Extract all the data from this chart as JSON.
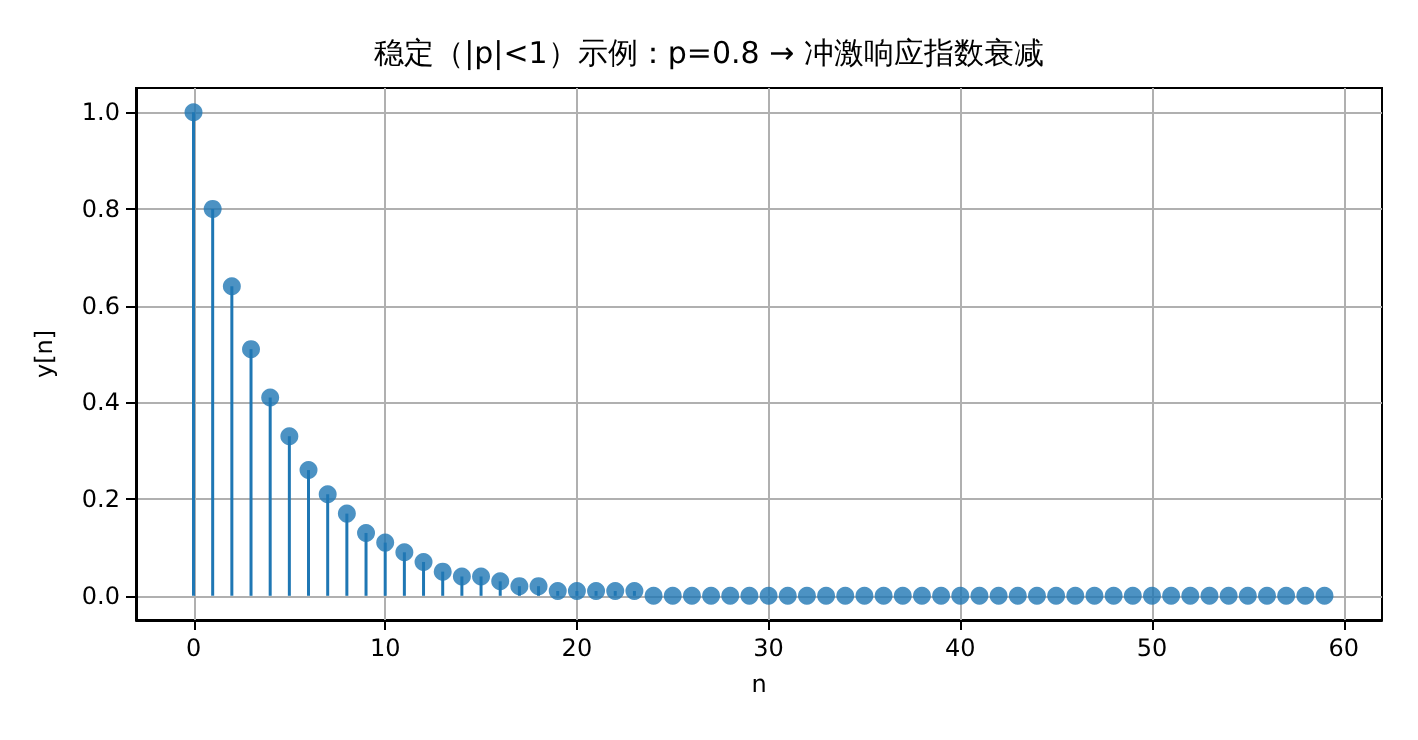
{
  "chart_data": {
    "type": "lollipop",
    "title": "稳定（|p|<1）示例：p=0.8 → 冲激响应指数衰减",
    "xlabel": "n",
    "ylabel": "y[n]",
    "x": [
      0,
      1,
      2,
      3,
      4,
      5,
      6,
      7,
      8,
      9,
      10,
      11,
      12,
      13,
      14,
      15,
      16,
      17,
      18,
      19,
      20,
      21,
      22,
      23,
      24,
      25,
      26,
      27,
      28,
      29,
      30,
      31,
      32,
      33,
      34,
      35,
      36,
      37,
      38,
      39,
      40,
      41,
      42,
      43,
      44,
      45,
      46,
      47,
      48,
      49,
      50,
      51,
      52,
      53,
      54,
      55,
      56,
      57,
      58,
      59
    ],
    "series": [
      {
        "color": "#1f77b4",
        "values": [
          1.0,
          0.8,
          0.64,
          0.51,
          0.41,
          0.33,
          0.26,
          0.21,
          0.17,
          0.13,
          0.11,
          0.09,
          0.07,
          0.05,
          0.04,
          0.04,
          0.03,
          0.02,
          0.02,
          0.01,
          0.01,
          0.01,
          0.01,
          0.01,
          0,
          0,
          0,
          0,
          0,
          0,
          0,
          0,
          0,
          0,
          0,
          0,
          0,
          0,
          0,
          0,
          0,
          0,
          0,
          0,
          0,
          0,
          0,
          0,
          0,
          0,
          0,
          0,
          0,
          0,
          0,
          0,
          0,
          0,
          0,
          0
        ]
      }
    ],
    "xlim": [
      -3,
      62
    ],
    "xticks": [
      0,
      10,
      20,
      30,
      40,
      50,
      60
    ],
    "ylim": [
      -0.05,
      1.05
    ],
    "yticks": [
      {
        "value": 0,
        "label": "0.0"
      },
      {
        "value": 0.2,
        "label": "0.2"
      },
      {
        "value": 0.4,
        "label": "0.4"
      },
      {
        "value": 0.6,
        "label": "0.6"
      },
      {
        "value": 0.8,
        "label": "0.8"
      },
      {
        "value": 1.0,
        "label": "1.0"
      }
    ],
    "grid": true,
    "marker": "circle"
  }
}
